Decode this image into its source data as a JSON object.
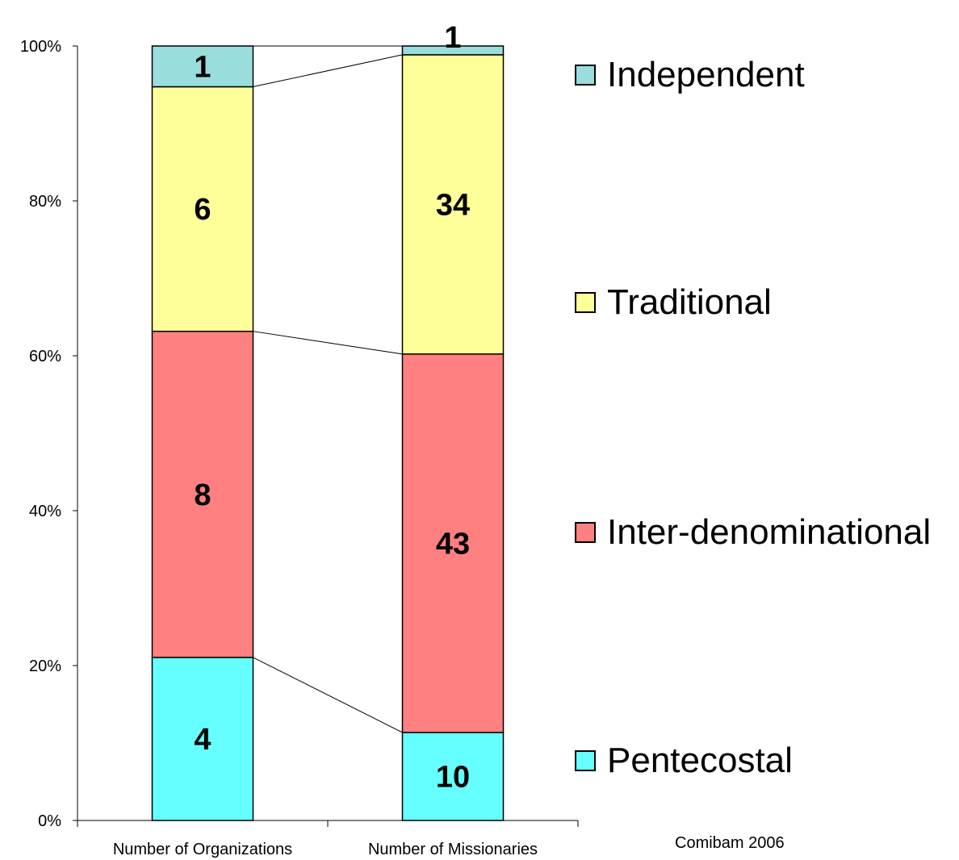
{
  "chart_data": {
    "type": "bar",
    "stacked": true,
    "percent_stacked": true,
    "categories": [
      "Number of Organizations",
      "Number of Missionaries"
    ],
    "series": [
      {
        "name": "Pentecostal",
        "color": "#66ffff",
        "values": [
          4,
          10
        ],
        "labels": [
          "4",
          "10"
        ]
      },
      {
        "name": "Inter-denominational",
        "color": "#ff8080",
        "values": [
          8,
          43
        ],
        "labels": [
          "8",
          "43"
        ]
      },
      {
        "name": "Traditional",
        "color": "#ffff99",
        "values": [
          6,
          34
        ],
        "labels": [
          "6",
          "34"
        ]
      },
      {
        "name": "Independent",
        "color": "#99dddd",
        "values": [
          1,
          1
        ],
        "labels": [
          "1",
          "1"
        ]
      }
    ],
    "y_ticks": [
      "0%",
      "20%",
      "40%",
      "60%",
      "80%",
      "100%"
    ],
    "ylim": [
      0,
      100
    ],
    "legend_position": "right",
    "series_lines": true,
    "grid": false
  },
  "legend": {
    "items": [
      {
        "label": "Independent",
        "color": "#99dddd"
      },
      {
        "label": "Traditional",
        "color": "#ffff99"
      },
      {
        "label": "Inter-denominational",
        "color": "#ff8080"
      },
      {
        "label": "Pentecostal",
        "color": "#66ffff"
      }
    ]
  },
  "source": "Comibam 2006"
}
